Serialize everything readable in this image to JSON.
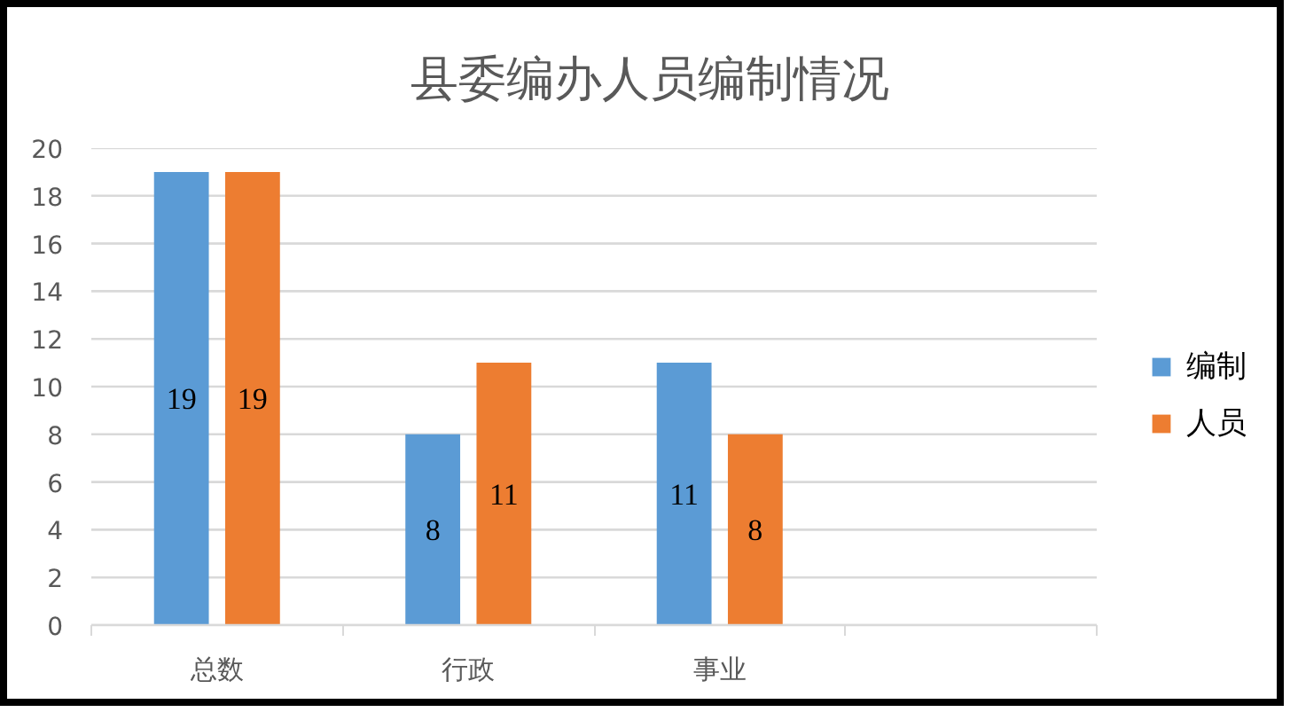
{
  "chart_data": {
    "type": "bar",
    "title": "县委编办人员编制情况",
    "categories": [
      "总数",
      "行政",
      "事业",
      null
    ],
    "series": [
      {
        "name": "编制",
        "color": "#5b9bd5",
        "values": [
          19,
          8,
          11,
          null
        ]
      },
      {
        "name": "人员",
        "color": "#ed7d31",
        "values": [
          19,
          11,
          8,
          null
        ]
      }
    ],
    "ylim": [
      0,
      20
    ],
    "yticks": [
      0,
      2,
      4,
      6,
      8,
      10,
      12,
      14,
      16,
      18,
      20
    ],
    "grid": "y",
    "legend": "right",
    "data_labels": true
  }
}
